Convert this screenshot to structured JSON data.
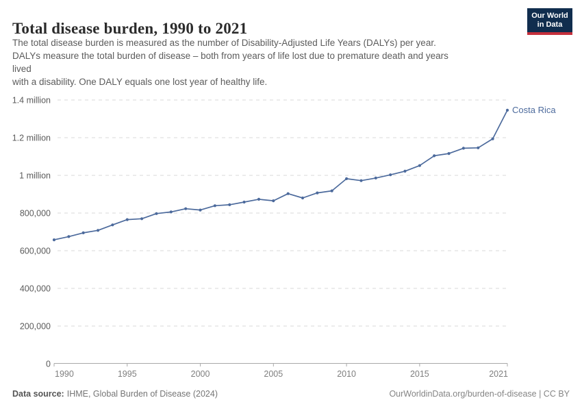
{
  "header": {
    "title": "Total disease burden, 1990 to 2021",
    "subtitle_lines": [
      "The total disease burden is measured as the number of Disability-Adjusted Life Years (DALYs) per year.",
      "DALYs measure the total burden of disease – both from years of life lost due to premature death and years",
      "lived",
      "with a disability. One DALY equals one lost year of healthy life."
    ],
    "logo": {
      "line1": "Our World",
      "line2": "in Data",
      "bg_color": "#102d4e",
      "bar_color": "#c5303c"
    }
  },
  "chart_data": {
    "type": "line",
    "title": "Total disease burden, 1990 to 2021",
    "ylabel": "",
    "xlabel": "",
    "unit": "DALYs per year",
    "entity": "Costa Rica",
    "line_color": "#4c6a9c",
    "grid": true,
    "legend_position": "end-of-line-label",
    "xlim": [
      1990,
      2021
    ],
    "ylim": [
      0,
      1400000
    ],
    "x_ticks": [
      1990,
      1995,
      2000,
      2005,
      2010,
      2015,
      2021
    ],
    "y_ticks": [
      {
        "value": 0,
        "label": "0"
      },
      {
        "value": 200000,
        "label": "200,000"
      },
      {
        "value": 400000,
        "label": "400,000"
      },
      {
        "value": 600000,
        "label": "600,000"
      },
      {
        "value": 800000,
        "label": "800,000"
      },
      {
        "value": 1000000,
        "label": "1 million"
      },
      {
        "value": 1200000,
        "label": "1.2 million"
      },
      {
        "value": 1400000,
        "label": "1.4 million"
      }
    ],
    "x": [
      1990,
      1991,
      1992,
      1993,
      1994,
      1995,
      1996,
      1997,
      1998,
      1999,
      2000,
      2001,
      2002,
      2003,
      2004,
      2005,
      2006,
      2007,
      2008,
      2009,
      2010,
      2011,
      2012,
      2013,
      2014,
      2015,
      2016,
      2017,
      2018,
      2019,
      2020,
      2021
    ],
    "series": [
      {
        "name": "Costa Rica",
        "values": [
          658000,
          675000,
          695000,
          708000,
          737000,
          765000,
          770000,
          797000,
          806000,
          823000,
          816000,
          839000,
          844000,
          858000,
          873000,
          865000,
          903000,
          880000,
          907000,
          918000,
          982000,
          972000,
          986000,
          1003000,
          1022000,
          1052000,
          1104000,
          1116000,
          1144000,
          1146000,
          1194000,
          1346000
        ]
      }
    ]
  },
  "footer": {
    "datasource_label": "Data source:",
    "datasource_value": "IHME, Global Burden of Disease (2024)",
    "link": "OurWorldinData.org/burden-of-disease | CC BY"
  }
}
